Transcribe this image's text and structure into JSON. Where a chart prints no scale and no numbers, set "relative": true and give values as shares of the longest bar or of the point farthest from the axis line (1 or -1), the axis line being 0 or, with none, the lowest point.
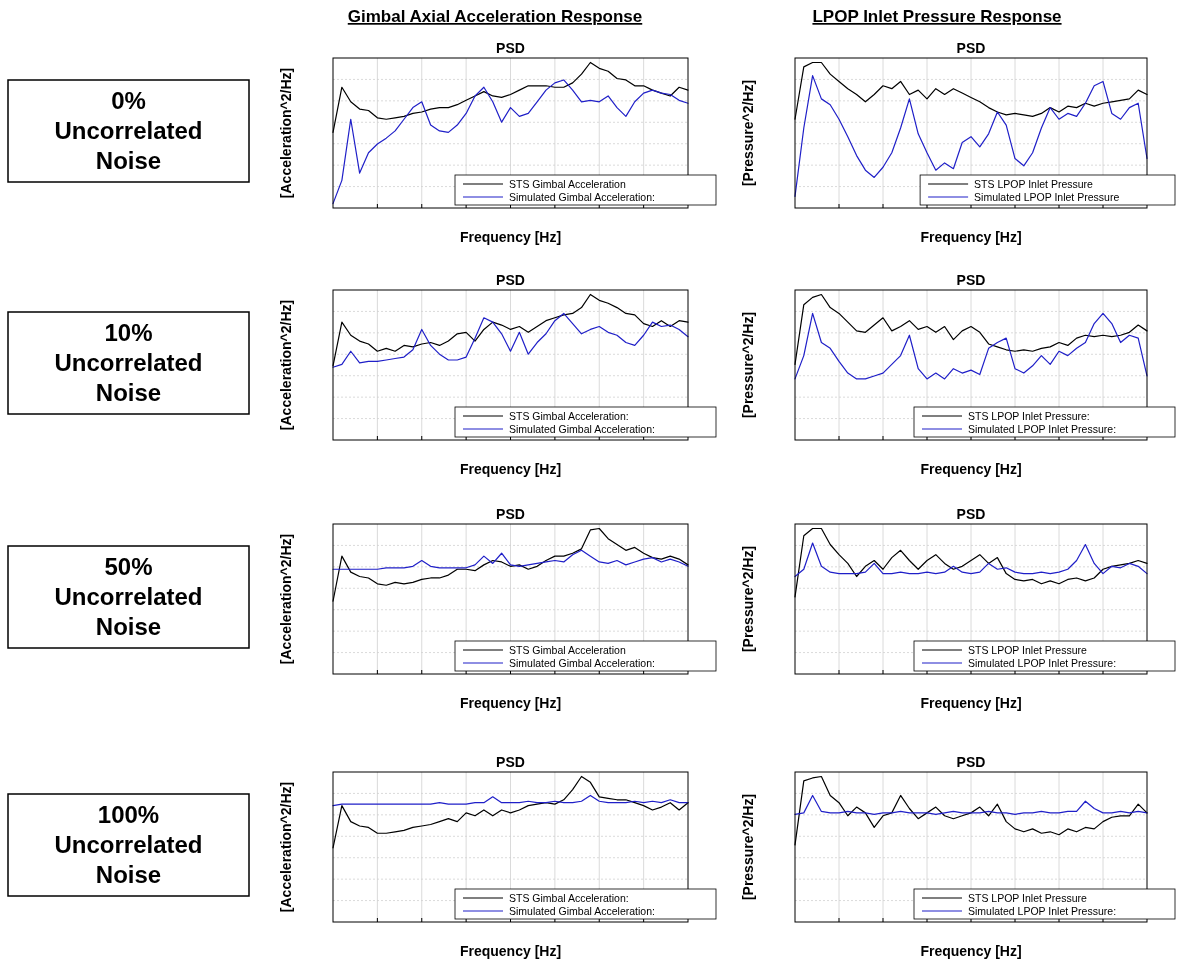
{
  "chart_data": [
    {
      "type": "other",
      "title": "Gimbal Axial Acceleration Response"
    },
    {
      "type": "other",
      "title": "LPOP Inlet Pressure Response"
    },
    {
      "type": "other",
      "title": "0% Uncorrelated Noise"
    },
    {
      "type": "line",
      "relative": true,
      "title": "PSD",
      "xlabel": "Frequency [Hz]",
      "ylabel": "[Acceleration^2/Hz]",
      "grid": true,
      "legend": "bottom right",
      "categories": [
        null,
        null,
        null,
        null,
        null,
        null,
        null,
        null,
        null,
        null,
        null,
        null,
        null,
        null,
        null,
        null,
        null,
        null,
        null,
        null,
        null,
        null,
        null,
        null,
        null,
        null,
        null,
        null,
        null,
        null,
        null,
        null,
        null,
        null,
        null,
        null,
        null,
        null,
        null,
        null,
        null
      ],
      "series": [
        {
          "name": "STS Gimbal Acceleration",
          "color": "#000000",
          "values": [
            0.52,
            0.83,
            0.73,
            0.68,
            0.67,
            0.62,
            0.61,
            0.62,
            0.63,
            0.65,
            0.66,
            0.68,
            0.69,
            0.69,
            0.71,
            0.74,
            0.77,
            0.8,
            0.77,
            0.76,
            0.78,
            0.81,
            0.84,
            0.84,
            0.84,
            0.83,
            0.83,
            0.86,
            0.92,
            1,
            0.96,
            0.94,
            0.89,
            0.88,
            0.84,
            0.84,
            0.81,
            0.79,
            0.77,
            0.83,
            0.81
          ]
        },
        {
          "name": "Simulated Gimbal Acceleration:",
          "color": "#1f1fc8",
          "values": [
            0.03,
            0.19,
            0.61,
            0.24,
            0.38,
            0.44,
            0.48,
            0.53,
            0.61,
            0.69,
            0.73,
            0.57,
            0.53,
            0.52,
            0.57,
            0.65,
            0.77,
            0.83,
            0.73,
            0.59,
            0.69,
            0.63,
            0.65,
            0.73,
            0.81,
            0.86,
            0.88,
            0.81,
            0.73,
            0.74,
            0.73,
            0.77,
            0.69,
            0.63,
            0.73,
            0.79,
            0.81,
            0.79,
            0.78,
            0.74,
            0.72
          ]
        }
      ]
    },
    {
      "type": "line",
      "relative": true,
      "title": "PSD",
      "xlabel": "Frequency [Hz]",
      "ylabel": "[Pressure^2/Hz]",
      "grid": true,
      "legend": "bottom right",
      "categories": [
        null,
        null,
        null,
        null,
        null,
        null,
        null,
        null,
        null,
        null,
        null,
        null,
        null,
        null,
        null,
        null,
        null,
        null,
        null,
        null,
        null,
        null,
        null,
        null,
        null,
        null,
        null,
        null,
        null,
        null,
        null,
        null,
        null,
        null,
        null,
        null,
        null,
        null,
        null,
        null,
        null
      ],
      "series": [
        {
          "name": "STS LPOP Inlet Pressure",
          "color": "#000000",
          "values": [
            0.61,
            0.97,
            1,
            1,
            0.92,
            0.87,
            0.82,
            0.78,
            0.73,
            0.78,
            0.84,
            0.82,
            0.87,
            0.78,
            0.81,
            0.75,
            0.82,
            0.78,
            0.82,
            0.79,
            0.76,
            0.73,
            0.69,
            0.66,
            0.64,
            0.65,
            0.64,
            0.63,
            0.65,
            0.69,
            0.66,
            0.7,
            0.69,
            0.72,
            0.7,
            0.72,
            0.73,
            0.74,
            0.75,
            0.81,
            0.78
          ]
        },
        {
          "name": "Simulated LPOP Inlet Pressure",
          "color": "#1f1fc8",
          "values": [
            0.08,
            0.55,
            0.91,
            0.75,
            0.71,
            0.61,
            0.49,
            0.36,
            0.26,
            0.21,
            0.28,
            0.38,
            0.55,
            0.75,
            0.51,
            0.38,
            0.26,
            0.31,
            0.27,
            0.45,
            0.49,
            0.42,
            0.51,
            0.66,
            0.57,
            0.34,
            0.29,
            0.38,
            0.55,
            0.69,
            0.61,
            0.65,
            0.63,
            0.72,
            0.84,
            0.87,
            0.65,
            0.61,
            0.69,
            0.72,
            0.34
          ]
        }
      ]
    },
    {
      "type": "other",
      "title": "10% Uncorrelated Noise"
    },
    {
      "type": "line",
      "relative": true,
      "title": "PSD",
      "xlabel": "Frequency [Hz]",
      "ylabel": "[Acceleration^2/Hz]",
      "grid": true,
      "legend": "bottom right",
      "categories": [
        null,
        null,
        null,
        null,
        null,
        null,
        null,
        null,
        null,
        null,
        null,
        null,
        null,
        null,
        null,
        null,
        null,
        null,
        null,
        null,
        null,
        null,
        null,
        null,
        null,
        null,
        null,
        null,
        null,
        null,
        null,
        null,
        null,
        null,
        null,
        null,
        null,
        null,
        null,
        null,
        null
      ],
      "series": [
        {
          "name": "STS Gimbal Acceleration:",
          "color": "#000000",
          "values": [
            0.51,
            0.81,
            0.72,
            0.68,
            0.66,
            0.61,
            0.63,
            0.61,
            0.65,
            0.64,
            0.66,
            0.67,
            0.65,
            0.68,
            0.73,
            0.74,
            0.68,
            0.76,
            0.81,
            0.79,
            0.76,
            0.78,
            0.74,
            0.78,
            0.82,
            0.84,
            0.86,
            0.87,
            0.91,
            1,
            0.96,
            0.94,
            0.91,
            0.87,
            0.86,
            0.8,
            0.78,
            0.82,
            0.78,
            0.82,
            0.81
          ]
        },
        {
          "name": "Simulated Gimbal Acceleration:",
          "color": "#1f1fc8",
          "values": [
            0.5,
            0.52,
            0.61,
            0.53,
            0.54,
            0.54,
            0.55,
            0.56,
            0.57,
            0.62,
            0.76,
            0.65,
            0.59,
            0.55,
            0.55,
            0.57,
            0.7,
            0.84,
            0.81,
            0.73,
            0.61,
            0.74,
            0.59,
            0.67,
            0.73,
            0.82,
            0.87,
            0.8,
            0.73,
            0.76,
            0.78,
            0.74,
            0.72,
            0.67,
            0.65,
            0.72,
            0.81,
            0.78,
            0.79,
            0.76,
            0.71
          ]
        }
      ]
    },
    {
      "type": "line",
      "relative": true,
      "title": "PSD",
      "xlabel": "Frequency [Hz]",
      "ylabel": "[Pressure^2/Hz]",
      "grid": true,
      "legend": "bottom right",
      "categories": [
        null,
        null,
        null,
        null,
        null,
        null,
        null,
        null,
        null,
        null,
        null,
        null,
        null,
        null,
        null,
        null,
        null,
        null,
        null,
        null,
        null,
        null,
        null,
        null,
        null,
        null,
        null,
        null,
        null,
        null,
        null,
        null,
        null,
        null,
        null,
        null,
        null,
        null,
        null,
        null,
        null
      ],
      "series": [
        {
          "name": "STS LPOP Inlet Pressure:",
          "color": "#000000",
          "values": [
            0.52,
            0.93,
            0.98,
            1,
            0.91,
            0.87,
            0.81,
            0.75,
            0.74,
            0.79,
            0.84,
            0.75,
            0.78,
            0.82,
            0.76,
            0.78,
            0.74,
            0.78,
            0.69,
            0.75,
            0.78,
            0.74,
            0.66,
            0.64,
            0.62,
            0.61,
            0.62,
            0.61,
            0.63,
            0.64,
            0.67,
            0.65,
            0.7,
            0.72,
            0.71,
            0.72,
            0.71,
            0.72,
            0.74,
            0.79,
            0.75
          ]
        },
        {
          "name": "Simulated LPOP Inlet Pressure:",
          "color": "#1f1fc8",
          "values": [
            0.42,
            0.58,
            0.87,
            0.67,
            0.63,
            0.54,
            0.46,
            0.42,
            0.42,
            0.44,
            0.46,
            0.52,
            0.58,
            0.72,
            0.49,
            0.42,
            0.46,
            0.42,
            0.49,
            0.46,
            0.48,
            0.45,
            0.63,
            0.67,
            0.7,
            0.49,
            0.46,
            0.51,
            0.58,
            0.52,
            0.61,
            0.58,
            0.63,
            0.67,
            0.8,
            0.87,
            0.8,
            0.67,
            0.72,
            0.7,
            0.44
          ]
        }
      ]
    },
    {
      "type": "other",
      "title": "50% Uncorrelated Noise"
    },
    {
      "type": "line",
      "relative": true,
      "title": "PSD",
      "xlabel": "Frequency [Hz]",
      "ylabel": "[Acceleration^2/Hz]",
      "grid": true,
      "legend": "bottom right",
      "categories": [
        null,
        null,
        null,
        null,
        null,
        null,
        null,
        null,
        null,
        null,
        null,
        null,
        null,
        null,
        null,
        null,
        null,
        null,
        null,
        null,
        null,
        null,
        null,
        null,
        null,
        null,
        null,
        null,
        null,
        null,
        null,
        null,
        null,
        null,
        null,
        null,
        null,
        null,
        null,
        null,
        null
      ],
      "series": [
        {
          "name": "STS Gimbal Acceleration",
          "color": "#000000",
          "values": [
            0.5,
            0.81,
            0.7,
            0.67,
            0.66,
            0.62,
            0.61,
            0.63,
            0.62,
            0.63,
            0.65,
            0.66,
            0.66,
            0.68,
            0.72,
            0.72,
            0.71,
            0.75,
            0.78,
            0.77,
            0.74,
            0.75,
            0.72,
            0.74,
            0.78,
            0.81,
            0.81,
            0.83,
            0.86,
            0.99,
            1,
            0.93,
            0.89,
            0.85,
            0.87,
            0.83,
            0.8,
            0.79,
            0.81,
            0.79,
            0.75
          ]
        },
        {
          "name": "Simulated Gimbal Acceleration:",
          "color": "#1f1fc8",
          "values": [
            0.72,
            0.72,
            0.72,
            0.72,
            0.72,
            0.72,
            0.73,
            0.73,
            0.73,
            0.74,
            0.78,
            0.74,
            0.73,
            0.73,
            0.73,
            0.73,
            0.75,
            0.81,
            0.76,
            0.83,
            0.75,
            0.74,
            0.75,
            0.76,
            0.77,
            0.78,
            0.77,
            0.82,
            0.85,
            0.81,
            0.77,
            0.76,
            0.78,
            0.75,
            0.77,
            0.79,
            0.8,
            0.77,
            0.79,
            0.77,
            0.74
          ]
        }
      ]
    },
    {
      "type": "line",
      "relative": true,
      "title": "PSD",
      "xlabel": "Frequency [Hz]",
      "ylabel": "[Pressure^2/Hz]",
      "grid": true,
      "legend": "bottom right",
      "categories": [
        null,
        null,
        null,
        null,
        null,
        null,
        null,
        null,
        null,
        null,
        null,
        null,
        null,
        null,
        null,
        null,
        null,
        null,
        null,
        null,
        null,
        null,
        null,
        null,
        null,
        null,
        null,
        null,
        null,
        null,
        null,
        null,
        null,
        null,
        null,
        null,
        null,
        null,
        null,
        null,
        null
      ],
      "series": [
        {
          "name": "STS LPOP Inlet Pressure",
          "color": "#000000",
          "values": [
            0.53,
            0.95,
            1,
            1,
            0.89,
            0.82,
            0.76,
            0.67,
            0.74,
            0.78,
            0.72,
            0.8,
            0.85,
            0.78,
            0.72,
            0.78,
            0.82,
            0.76,
            0.72,
            0.74,
            0.78,
            0.82,
            0.76,
            0.8,
            0.69,
            0.65,
            0.64,
            0.65,
            0.62,
            0.64,
            0.62,
            0.65,
            0.66,
            0.64,
            0.66,
            0.72,
            0.74,
            0.75,
            0.76,
            0.78,
            0.76
          ]
        },
        {
          "name": "Simulated LPOP Inlet Pressure:",
          "color": "#1f1fc8",
          "values": [
            0.67,
            0.72,
            0.9,
            0.74,
            0.7,
            0.69,
            0.69,
            0.69,
            0.7,
            0.76,
            0.69,
            0.69,
            0.7,
            0.69,
            0.69,
            0.7,
            0.69,
            0.7,
            0.74,
            0.7,
            0.69,
            0.7,
            0.76,
            0.72,
            0.73,
            0.7,
            0.69,
            0.69,
            0.7,
            0.69,
            0.7,
            0.72,
            0.78,
            0.89,
            0.76,
            0.69,
            0.74,
            0.73,
            0.76,
            0.74,
            0.69
          ]
        }
      ]
    },
    {
      "type": "other",
      "title": "100% Uncorrelated Noise"
    },
    {
      "type": "line",
      "relative": true,
      "title": "PSD",
      "xlabel": "Frequency [Hz]",
      "ylabel": "[Acceleration^2/Hz]",
      "grid": true,
      "legend": "bottom right",
      "categories": [
        null,
        null,
        null,
        null,
        null,
        null,
        null,
        null,
        null,
        null,
        null,
        null,
        null,
        null,
        null,
        null,
        null,
        null,
        null,
        null,
        null,
        null,
        null,
        null,
        null,
        null,
        null,
        null,
        null,
        null,
        null,
        null,
        null,
        null,
        null,
        null,
        null,
        null,
        null,
        null,
        null
      ],
      "series": [
        {
          "name": "STS Gimbal Acceleration:",
          "color": "#000000",
          "values": [
            0.51,
            0.8,
            0.69,
            0.66,
            0.65,
            0.61,
            0.61,
            0.62,
            0.63,
            0.65,
            0.66,
            0.67,
            0.69,
            0.71,
            0.69,
            0.75,
            0.73,
            0.77,
            0.73,
            0.77,
            0.75,
            0.77,
            0.8,
            0.81,
            0.82,
            0.81,
            0.84,
            0.91,
            1,
            0.96,
            0.86,
            0.85,
            0.84,
            0.84,
            0.82,
            0.8,
            0.77,
            0.79,
            0.82,
            0.77,
            0.82
          ]
        },
        {
          "name": "Simulated Gimbal Acceleration:",
          "color": "#1f1fc8",
          "values": [
            0.8,
            0.81,
            0.81,
            0.81,
            0.81,
            0.81,
            0.81,
            0.81,
            0.81,
            0.81,
            0.81,
            0.81,
            0.82,
            0.81,
            0.81,
            0.81,
            0.82,
            0.82,
            0.86,
            0.82,
            0.82,
            0.82,
            0.83,
            0.82,
            0.82,
            0.83,
            0.82,
            0.82,
            0.83,
            0.87,
            0.83,
            0.82,
            0.82,
            0.82,
            0.83,
            0.82,
            0.83,
            0.82,
            0.84,
            0.82,
            0.82
          ]
        }
      ]
    },
    {
      "type": "line",
      "relative": true,
      "title": "PSD",
      "xlabel": "Frequency [Hz]",
      "ylabel": "[Pressure^2/Hz]",
      "grid": true,
      "legend": "bottom right",
      "categories": [
        null,
        null,
        null,
        null,
        null,
        null,
        null,
        null,
        null,
        null,
        null,
        null,
        null,
        null,
        null,
        null,
        null,
        null,
        null,
        null,
        null,
        null,
        null,
        null,
        null,
        null,
        null,
        null,
        null,
        null,
        null,
        null,
        null,
        null,
        null,
        null,
        null,
        null,
        null,
        null,
        null
      ],
      "series": [
        {
          "name": "STS LPOP Inlet Pressure",
          "color": "#000000",
          "values": [
            0.53,
            0.97,
            0.99,
            1,
            0.87,
            0.82,
            0.73,
            0.79,
            0.75,
            0.65,
            0.73,
            0.75,
            0.87,
            0.78,
            0.71,
            0.75,
            0.79,
            0.73,
            0.71,
            0.73,
            0.75,
            0.79,
            0.73,
            0.81,
            0.69,
            0.64,
            0.62,
            0.64,
            0.61,
            0.62,
            0.6,
            0.64,
            0.62,
            0.65,
            0.64,
            0.69,
            0.72,
            0.73,
            0.73,
            0.81,
            0.75
          ]
        },
        {
          "name": "Simulated LPOP Inlet Pressure:",
          "color": "#1f1fc8",
          "values": [
            0.74,
            0.75,
            0.87,
            0.76,
            0.75,
            0.75,
            0.76,
            0.75,
            0.75,
            0.74,
            0.75,
            0.75,
            0.76,
            0.75,
            0.75,
            0.75,
            0.74,
            0.75,
            0.76,
            0.75,
            0.75,
            0.75,
            0.76,
            0.75,
            0.75,
            0.74,
            0.75,
            0.75,
            0.76,
            0.75,
            0.75,
            0.76,
            0.76,
            0.83,
            0.78,
            0.75,
            0.75,
            0.76,
            0.75,
            0.76,
            0.75
          ]
        }
      ]
    }
  ]
}
